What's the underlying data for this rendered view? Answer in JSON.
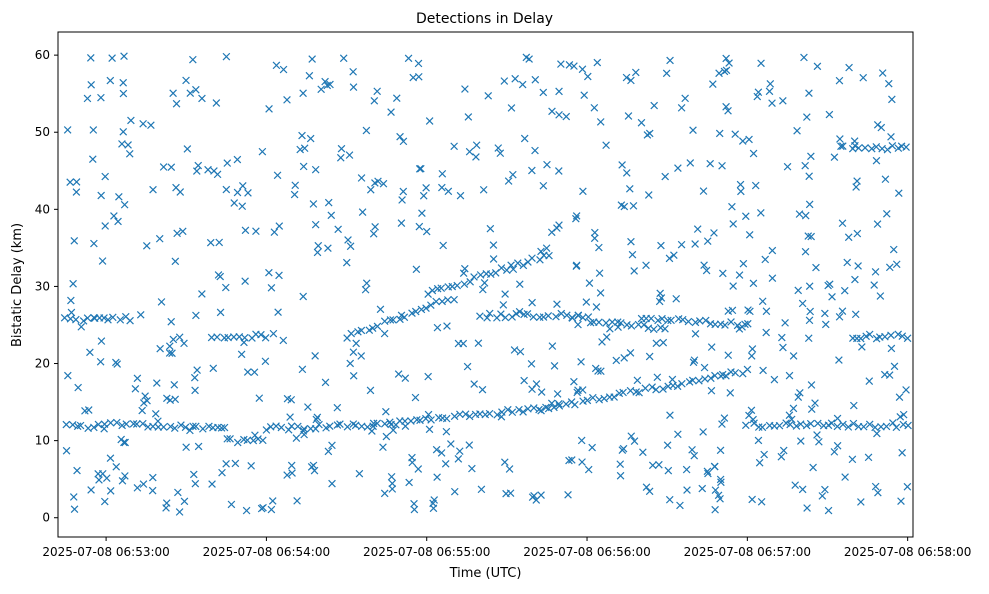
{
  "chart_data": {
    "type": "scatter",
    "title": "Detections in Delay",
    "xlabel": "Time (UTC)",
    "ylabel": "Bistatic Delay (km)",
    "marker": "x",
    "color": "#1f77b4",
    "xlim_seconds": [
      -18,
      302
    ],
    "ylim": [
      -2.5,
      63
    ],
    "x_ticks": [
      {
        "t": 0,
        "label": "2025-07-08 06:53:00"
      },
      {
        "t": 60,
        "label": "2025-07-08 06:54:00"
      },
      {
        "t": 120,
        "label": "2025-07-08 06:55:00"
      },
      {
        "t": 180,
        "label": "2025-07-08 06:56:00"
      },
      {
        "t": 240,
        "label": "2025-07-08 06:57:00"
      },
      {
        "t": 300,
        "label": "2025-07-08 06:58:00"
      }
    ],
    "y_ticks": [
      0,
      10,
      20,
      30,
      40,
      50,
      60
    ],
    "x_axis_note": "x values are seconds after 2025-07-08 06:53:00 UTC",
    "tracks": [
      {
        "name": "track-a",
        "x_start": -15,
        "x_end": 0,
        "y_start": 11.8,
        "y_end": 11.8
      },
      {
        "name": "track-b",
        "x_start": 0,
        "x_end": 45,
        "y_start": 12.3,
        "y_end": 11.6
      },
      {
        "name": "track-c",
        "x_start": 45,
        "x_end": 60,
        "y_start": 10,
        "y_end": 10
      },
      {
        "name": "track-d",
        "x_start": 60,
        "x_end": 100,
        "y_start": 11.6,
        "y_end": 12
      },
      {
        "name": "track-e",
        "x_start": 100,
        "x_end": 170,
        "y_start": 12,
        "y_end": 14.5
      },
      {
        "name": "track-f",
        "x_start": 170,
        "x_end": 240,
        "y_start": 14.5,
        "y_end": 19
      },
      {
        "name": "track-g",
        "x_start": 240,
        "x_end": 300,
        "y_start": 12,
        "y_end": 12
      },
      {
        "name": "track-h",
        "x_start": -15,
        "x_end": 10,
        "y_start": 25.8,
        "y_end": 25.8
      },
      {
        "name": "track-i",
        "x_start": 40,
        "x_end": 60,
        "y_start": 23.5,
        "y_end": 23.5
      },
      {
        "name": "track-j",
        "x_start": 90,
        "x_end": 130,
        "y_start": 23.5,
        "y_end": 28.5
      },
      {
        "name": "track-k",
        "x_start": 120,
        "x_end": 165,
        "y_start": 29,
        "y_end": 34
      },
      {
        "name": "track-l",
        "x_start": 140,
        "x_end": 175,
        "y_start": 26.2,
        "y_end": 26.2
      },
      {
        "name": "track-m",
        "x_start": 175,
        "x_end": 210,
        "y_start": 26,
        "y_end": 24.5
      },
      {
        "name": "track-n",
        "x_start": 200,
        "x_end": 240,
        "y_start": 26,
        "y_end": 25
      },
      {
        "name": "track-o",
        "x_start": 280,
        "x_end": 300,
        "y_start": 48,
        "y_end": 48
      },
      {
        "name": "track-p",
        "x_start": 280,
        "x_end": 300,
        "y_start": 23.5,
        "y_end": 23.5
      }
    ],
    "track_spacing_seconds": 2,
    "noise_point_count": 720
  }
}
